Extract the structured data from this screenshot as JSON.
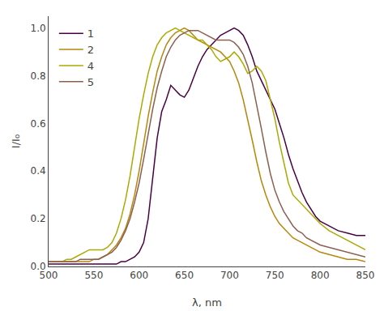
{
  "chart_data": {
    "type": "line",
    "xlabel": "λ, nm",
    "ylabel": "I/I₀",
    "xlim": [
      500,
      850
    ],
    "ylim": [
      0.0,
      1.05
    ],
    "xticks": [
      500,
      550,
      600,
      650,
      700,
      750,
      800,
      850
    ],
    "yticks": [
      {
        "value": 0.0,
        "label": "0.0"
      },
      0.2,
      0.4,
      0.6,
      0.8,
      {
        "value": 1.0,
        "label": "1.0"
      }
    ],
    "grid": false,
    "legend": "upper left",
    "x": [
      500,
      505,
      510,
      515,
      520,
      525,
      530,
      535,
      540,
      545,
      550,
      555,
      560,
      565,
      570,
      575,
      580,
      585,
      590,
      595,
      600,
      605,
      610,
      615,
      620,
      625,
      630,
      635,
      640,
      645,
      650,
      655,
      660,
      665,
      670,
      675,
      680,
      685,
      690,
      695,
      700,
      705,
      710,
      715,
      720,
      725,
      730,
      735,
      740,
      745,
      750,
      755,
      760,
      765,
      770,
      775,
      780,
      785,
      790,
      795,
      800,
      810,
      820,
      830,
      840,
      850
    ],
    "series": [
      {
        "name": "1",
        "color": "#4B0045",
        "values": [
          0.01,
          0.01,
          0.01,
          0.01,
          0.01,
          0.01,
          0.01,
          0.01,
          0.01,
          0.01,
          0.01,
          0.01,
          0.01,
          0.01,
          0.01,
          0.01,
          0.02,
          0.02,
          0.03,
          0.04,
          0.06,
          0.1,
          0.2,
          0.38,
          0.54,
          0.65,
          0.7,
          0.76,
          0.74,
          0.72,
          0.71,
          0.74,
          0.79,
          0.84,
          0.88,
          0.91,
          0.93,
          0.95,
          0.97,
          0.98,
          0.99,
          1.0,
          0.99,
          0.97,
          0.93,
          0.88,
          0.82,
          0.78,
          0.74,
          0.7,
          0.66,
          0.6,
          0.54,
          0.47,
          0.41,
          0.36,
          0.31,
          0.27,
          0.24,
          0.21,
          0.19,
          0.17,
          0.15,
          0.14,
          0.13,
          0.13
        ]
      },
      {
        "name": "2",
        "color": "#B8860B",
        "values": [
          0.02,
          0.02,
          0.02,
          0.02,
          0.02,
          0.02,
          0.02,
          0.02,
          0.02,
          0.02,
          0.03,
          0.03,
          0.04,
          0.05,
          0.07,
          0.09,
          0.12,
          0.16,
          0.22,
          0.3,
          0.4,
          0.52,
          0.63,
          0.73,
          0.82,
          0.88,
          0.93,
          0.96,
          0.98,
          0.99,
          1.0,
          0.99,
          0.97,
          0.95,
          0.94,
          0.93,
          0.92,
          0.91,
          0.9,
          0.88,
          0.86,
          0.82,
          0.77,
          0.7,
          0.62,
          0.53,
          0.44,
          0.36,
          0.3,
          0.25,
          0.21,
          0.18,
          0.16,
          0.14,
          0.12,
          0.11,
          0.1,
          0.09,
          0.08,
          0.07,
          0.06,
          0.05,
          0.04,
          0.03,
          0.03,
          0.02
        ]
      },
      {
        "name": "4",
        "color": "#AAAA00",
        "values": [
          0.02,
          0.02,
          0.02,
          0.02,
          0.03,
          0.03,
          0.04,
          0.05,
          0.06,
          0.07,
          0.07,
          0.07,
          0.07,
          0.08,
          0.1,
          0.14,
          0.2,
          0.28,
          0.38,
          0.5,
          0.62,
          0.72,
          0.81,
          0.88,
          0.93,
          0.96,
          0.98,
          0.99,
          1.0,
          0.99,
          0.98,
          0.97,
          0.96,
          0.95,
          0.95,
          0.93,
          0.91,
          0.88,
          0.86,
          0.87,
          0.88,
          0.9,
          0.88,
          0.85,
          0.81,
          0.82,
          0.84,
          0.82,
          0.78,
          0.7,
          0.62,
          0.52,
          0.43,
          0.35,
          0.3,
          0.28,
          0.26,
          0.24,
          0.22,
          0.2,
          0.18,
          0.15,
          0.13,
          0.11,
          0.09,
          0.07
        ]
      },
      {
        "name": "5",
        "color": "#8B6050",
        "values": [
          0.02,
          0.02,
          0.02,
          0.02,
          0.02,
          0.02,
          0.02,
          0.03,
          0.03,
          0.03,
          0.03,
          0.03,
          0.04,
          0.05,
          0.06,
          0.08,
          0.11,
          0.15,
          0.2,
          0.27,
          0.35,
          0.45,
          0.56,
          0.66,
          0.75,
          0.82,
          0.88,
          0.92,
          0.95,
          0.97,
          0.98,
          0.99,
          0.99,
          0.99,
          0.98,
          0.97,
          0.96,
          0.95,
          0.95,
          0.95,
          0.95,
          0.94,
          0.92,
          0.89,
          0.84,
          0.77,
          0.68,
          0.58,
          0.48,
          0.39,
          0.32,
          0.27,
          0.23,
          0.2,
          0.17,
          0.15,
          0.14,
          0.12,
          0.11,
          0.1,
          0.09,
          0.08,
          0.07,
          0.06,
          0.05,
          0.04
        ]
      }
    ]
  }
}
